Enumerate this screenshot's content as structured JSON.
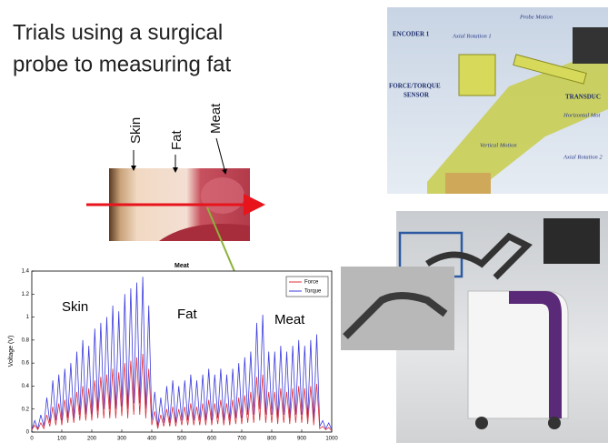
{
  "slide": {
    "title_lines": [
      "Trials using a surgical",
      "probe to measuring fat"
    ],
    "tissue_labels": [
      "Skin",
      "Fat",
      "Meat"
    ],
    "device_labels": [
      "ENCODER 1",
      "Axial Rotation 1",
      "Probe Motion",
      "FORCE/TORQUE",
      "SENSOR",
      "TRANSDUC",
      "Horizontal Mot",
      "Vertical Motion",
      "Axial Rotation 2"
    ]
  },
  "chart": {
    "type": "line",
    "title": "Meat",
    "ylabel": "Voltage (V)",
    "annotations": [
      "Skin",
      "Fat",
      "Meat"
    ],
    "legend": "upper right",
    "xlim": [
      0,
      1000
    ],
    "xticks": [
      0,
      100,
      200,
      300,
      400,
      500,
      600,
      700,
      800,
      900,
      1000
    ],
    "ylim": [
      0,
      1.4
    ],
    "yticks": [
      0,
      0.2,
      0.4,
      0.6,
      0.8,
      1,
      1.2,
      1.4
    ],
    "x": [
      0,
      10,
      20,
      30,
      40,
      50,
      60,
      70,
      80,
      90,
      100,
      110,
      120,
      130,
      140,
      150,
      160,
      170,
      180,
      190,
      200,
      210,
      220,
      230,
      240,
      250,
      260,
      270,
      280,
      290,
      300,
      310,
      320,
      330,
      340,
      350,
      360,
      370,
      380,
      390,
      400,
      410,
      420,
      430,
      440,
      450,
      460,
      470,
      480,
      490,
      500,
      510,
      520,
      530,
      540,
      550,
      560,
      570,
      580,
      590,
      600,
      610,
      620,
      630,
      640,
      650,
      660,
      670,
      680,
      690,
      700,
      710,
      720,
      730,
      740,
      750,
      760,
      770,
      780,
      790,
      800,
      810,
      820,
      830,
      840,
      850,
      860,
      870,
      880,
      890,
      900,
      910,
      920,
      930,
      940,
      950,
      960,
      970,
      980,
      990,
      1000
    ],
    "series": [
      {
        "name": "Torque",
        "color": "#3b3bdb",
        "values": [
          0.02,
          0.1,
          0.03,
          0.15,
          0.05,
          0.3,
          0.08,
          0.45,
          0.1,
          0.5,
          0.1,
          0.55,
          0.12,
          0.6,
          0.12,
          0.7,
          0.15,
          0.8,
          0.15,
          0.75,
          0.15,
          0.9,
          0.18,
          0.95,
          0.2,
          1.0,
          0.2,
          1.1,
          0.2,
          1.05,
          0.22,
          1.2,
          0.2,
          1.25,
          0.25,
          1.3,
          0.25,
          1.35,
          0.2,
          1.1,
          0.1,
          0.35,
          0.05,
          0.3,
          0.08,
          0.4,
          0.08,
          0.45,
          0.08,
          0.4,
          0.1,
          0.45,
          0.1,
          0.5,
          0.1,
          0.45,
          0.1,
          0.5,
          0.1,
          0.55,
          0.1,
          0.5,
          0.12,
          0.55,
          0.1,
          0.5,
          0.1,
          0.55,
          0.12,
          0.6,
          0.12,
          0.65,
          0.15,
          0.7,
          0.15,
          0.95,
          0.2,
          1.02,
          0.15,
          0.7,
          0.15,
          0.7,
          0.12,
          0.75,
          0.15,
          0.7,
          0.12,
          0.75,
          0.15,
          0.8,
          0.15,
          0.75,
          0.12,
          0.8,
          0.1,
          0.85,
          0.05,
          0.1,
          0.03,
          0.08,
          0.02
        ]
      },
      {
        "name": "Force",
        "color": "#e0303a",
        "values": [
          0.02,
          0.06,
          0.02,
          0.08,
          0.03,
          0.15,
          0.05,
          0.22,
          0.06,
          0.25,
          0.06,
          0.28,
          0.08,
          0.3,
          0.08,
          0.35,
          0.1,
          0.4,
          0.1,
          0.38,
          0.1,
          0.45,
          0.12,
          0.48,
          0.12,
          0.5,
          0.12,
          0.55,
          0.12,
          0.52,
          0.14,
          0.6,
          0.12,
          0.62,
          0.15,
          0.65,
          0.15,
          0.68,
          0.12,
          0.55,
          0.06,
          0.18,
          0.03,
          0.15,
          0.05,
          0.2,
          0.05,
          0.22,
          0.05,
          0.2,
          0.06,
          0.22,
          0.06,
          0.25,
          0.06,
          0.22,
          0.06,
          0.25,
          0.06,
          0.28,
          0.06,
          0.25,
          0.07,
          0.28,
          0.06,
          0.25,
          0.06,
          0.28,
          0.07,
          0.3,
          0.07,
          0.32,
          0.08,
          0.35,
          0.08,
          0.48,
          0.1,
          0.5,
          0.08,
          0.35,
          0.08,
          0.35,
          0.07,
          0.38,
          0.08,
          0.35,
          0.07,
          0.38,
          0.08,
          0.4,
          0.08,
          0.38,
          0.07,
          0.4,
          0.06,
          0.42,
          0.03,
          0.05,
          0.02,
          0.04,
          0.01
        ]
      }
    ]
  }
}
